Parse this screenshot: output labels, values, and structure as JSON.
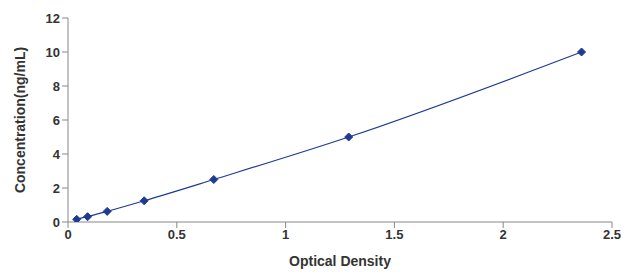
{
  "chart_data": {
    "type": "line",
    "x_label": "Optical Density",
    "y_label": "Concentration(ng/mL)",
    "x": [
      0.04,
      0.09,
      0.18,
      0.35,
      0.67,
      1.29,
      2.36
    ],
    "values": [
      0.156,
      0.312,
      0.625,
      1.25,
      2.5,
      5,
      10
    ],
    "color": "#1f3a93",
    "marker": "diamond",
    "xlim": [
      0,
      2.5
    ],
    "xticks": [
      0,
      0.5,
      1,
      1.5,
      2,
      2.5
    ],
    "ylim": [
      0,
      12
    ],
    "yticks": [
      0,
      2,
      4,
      6,
      8,
      10,
      12
    ],
    "grid": false
  }
}
